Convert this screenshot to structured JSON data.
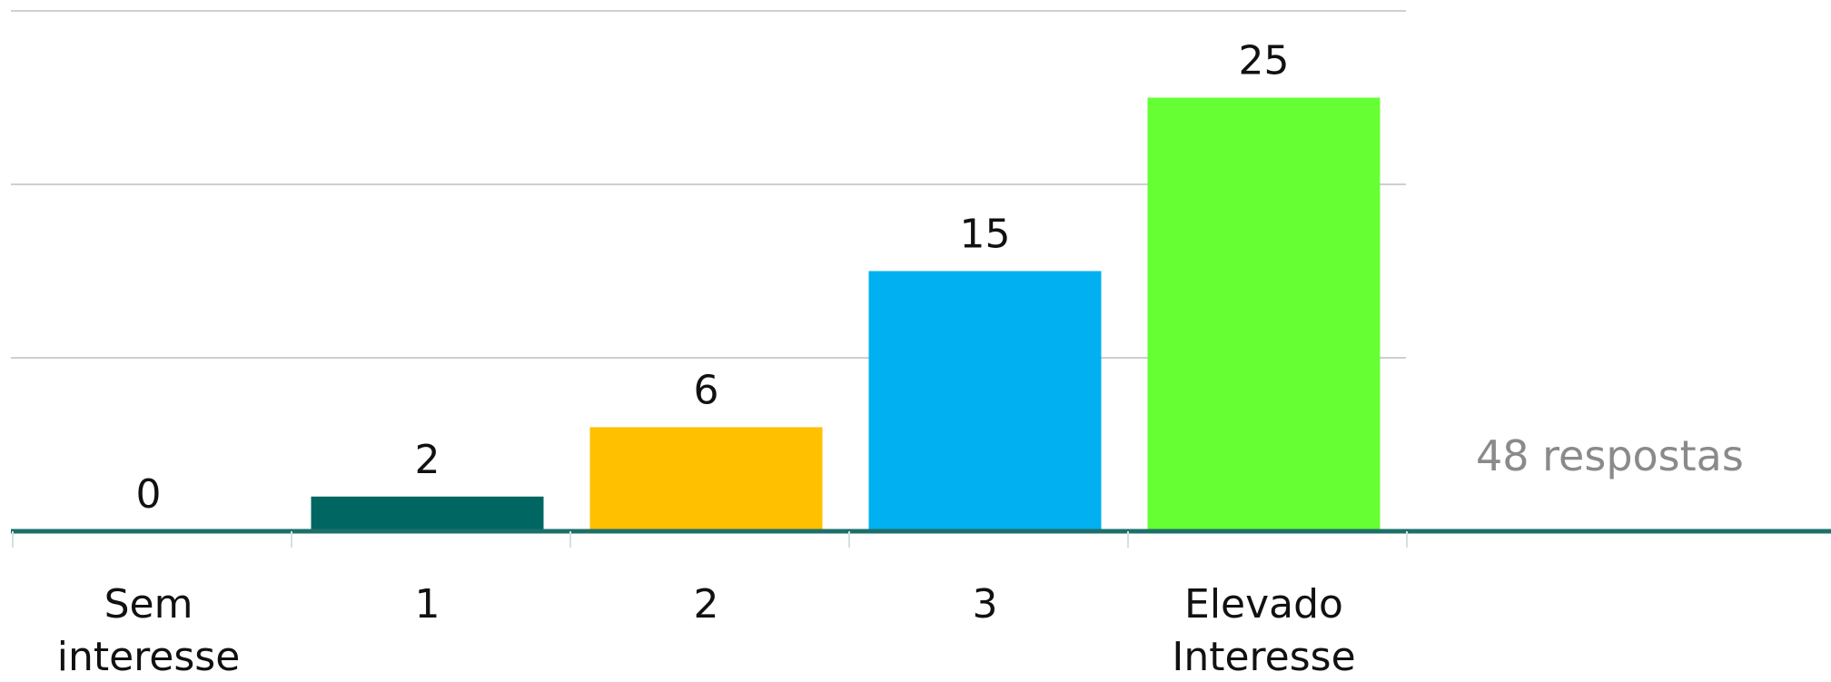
{
  "chart_data": {
    "type": "bar",
    "categories": [
      [
        "Sem",
        "interesse"
      ],
      [
        "1"
      ],
      [
        "2"
      ],
      [
        "3"
      ],
      [
        "Elevado",
        "Interesse"
      ]
    ],
    "values": [
      0,
      2,
      6,
      15,
      25
    ],
    "data_labels": [
      "0",
      "2",
      "6",
      "15",
      "25"
    ],
    "colors": [
      "#f2a900",
      "#006661",
      "#ffc000",
      "#00b0f0",
      "#66ff33"
    ],
    "ylim": [
      0,
      30
    ],
    "gridlines": [
      10,
      20,
      30
    ],
    "grid": true,
    "legend": "none",
    "title": "",
    "xlabel": "",
    "ylabel": ""
  },
  "annotation": {
    "responses_text": "48 respostas"
  },
  "style": {
    "axis_color": "#1d6f6a",
    "grid_color": "#cfcfcf",
    "annotation_color": "#8a8a8a"
  }
}
